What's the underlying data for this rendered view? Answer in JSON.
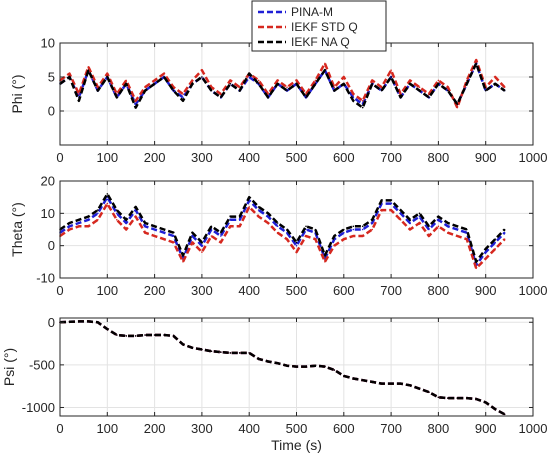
{
  "chart_data": [
    {
      "type": "line",
      "ylabel": "Phi (°)",
      "xlabel": "",
      "xlim": [
        0,
        1000
      ],
      "ylim": [
        -5,
        10
      ],
      "xticks": [
        0,
        100,
        200,
        300,
        400,
        500,
        600,
        700,
        800,
        900,
        1000
      ],
      "yticks": [
        0,
        5,
        10
      ],
      "grid": true,
      "x": [
        0,
        20,
        40,
        60,
        80,
        100,
        120,
        140,
        160,
        180,
        200,
        220,
        240,
        260,
        280,
        300,
        320,
        340,
        360,
        380,
        400,
        420,
        440,
        460,
        480,
        500,
        520,
        540,
        560,
        580,
        600,
        620,
        640,
        660,
        680,
        700,
        720,
        740,
        760,
        780,
        800,
        820,
        840,
        860,
        880,
        900,
        920,
        940
      ],
      "series": [
        {
          "name": "PINA-M",
          "values": [
            4,
            5,
            2,
            6,
            3,
            5,
            2,
            4,
            1,
            3,
            4,
            5,
            3,
            2,
            4,
            5,
            3,
            2,
            4,
            3,
            5,
            4,
            2,
            4,
            3,
            4,
            2,
            4,
            6,
            3,
            4,
            2,
            1,
            4,
            3,
            5,
            2,
            4,
            3,
            2,
            4,
            3,
            1,
            4,
            7,
            3,
            4,
            3
          ]
        },
        {
          "name": "IEKF STD Q",
          "values": [
            4.5,
            5.5,
            2.5,
            6.5,
            3.5,
            5.5,
            2.5,
            4.5,
            1.5,
            3.5,
            4.5,
            5.5,
            3.5,
            2.5,
            4.5,
            6,
            3.5,
            2.5,
            4.5,
            3.5,
            5.5,
            4.5,
            2.5,
            4.5,
            3.5,
            4.5,
            2.5,
            4.5,
            7,
            3.5,
            5,
            2.5,
            1.5,
            4.5,
            3.5,
            6,
            2.5,
            4.5,
            3.5,
            2.5,
            4.5,
            3.5,
            0.5,
            4.5,
            7.5,
            3.5,
            5,
            3.5
          ]
        },
        {
          "name": "IEKF NA Q",
          "values": [
            4,
            5,
            1.5,
            6,
            3,
            5,
            2,
            4,
            0.5,
            3,
            4,
            5,
            3,
            1.5,
            4,
            5,
            3,
            2,
            4,
            3,
            5.5,
            4,
            2,
            4,
            3,
            4,
            2,
            4,
            6,
            3,
            4,
            1.5,
            0.5,
            4,
            3,
            5,
            2,
            4,
            3,
            2,
            4,
            3,
            1,
            4,
            7,
            3,
            4,
            3
          ]
        }
      ]
    },
    {
      "type": "line",
      "ylabel": "Theta (°)",
      "xlabel": "",
      "xlim": [
        0,
        1000
      ],
      "ylim": [
        -10,
        20
      ],
      "xticks": [
        0,
        100,
        200,
        300,
        400,
        500,
        600,
        700,
        800,
        900,
        1000
      ],
      "yticks": [
        -10,
        0,
        10,
        20
      ],
      "grid": true,
      "x": [
        0,
        20,
        40,
        60,
        80,
        100,
        120,
        140,
        160,
        180,
        200,
        220,
        240,
        260,
        280,
        300,
        320,
        340,
        360,
        380,
        400,
        420,
        440,
        460,
        480,
        500,
        520,
        540,
        560,
        580,
        600,
        620,
        640,
        660,
        680,
        700,
        720,
        740,
        760,
        780,
        800,
        820,
        840,
        860,
        880,
        900,
        920,
        940
      ],
      "series": [
        {
          "name": "PINA-M",
          "values": [
            4,
            6,
            7,
            8,
            10,
            15,
            10,
            7,
            11,
            6,
            5,
            4,
            3,
            -4,
            3,
            0,
            5,
            3,
            8,
            8,
            14,
            11,
            9,
            6,
            4,
            0,
            5,
            4,
            -4,
            2,
            4,
            5,
            5,
            7,
            13,
            13,
            10,
            7,
            9,
            5,
            8,
            6,
            5,
            4,
            -6,
            -2,
            1,
            4
          ]
        },
        {
          "name": "IEKF STD Q",
          "values": [
            3,
            5,
            6,
            6,
            8,
            13,
            8,
            5,
            9,
            4,
            3,
            2,
            1,
            -5,
            1,
            -2,
            3,
            1,
            6,
            6,
            12,
            9,
            7,
            4,
            2,
            -2,
            3,
            2,
            -5,
            0,
            2,
            3,
            3,
            5,
            11,
            11,
            8,
            5,
            7,
            3,
            6,
            4,
            3,
            2,
            -7,
            -4,
            -1,
            2
          ]
        },
        {
          "name": "IEKF NA Q",
          "values": [
            5,
            7,
            8,
            9,
            11,
            16,
            11,
            8,
            12,
            7,
            6,
            5,
            4,
            -3,
            4,
            1,
            6,
            4,
            9,
            9,
            15,
            12,
            10,
            7,
            5,
            1,
            6,
            5,
            -3,
            3,
            5,
            6,
            6,
            8,
            14,
            14,
            11,
            8,
            10,
            6,
            9,
            7,
            6,
            5,
            -5,
            -1,
            2,
            5
          ]
        }
      ]
    },
    {
      "type": "line",
      "ylabel": "Psi (°)",
      "xlabel": "Time (s)",
      "xlim": [
        0,
        1000
      ],
      "ylim": [
        -1100,
        50
      ],
      "xticks": [
        0,
        100,
        200,
        300,
        400,
        500,
        600,
        700,
        800,
        900,
        1000
      ],
      "yticks": [
        -1000,
        -500,
        0
      ],
      "grid": true,
      "x": [
        0,
        20,
        40,
        60,
        80,
        100,
        120,
        140,
        160,
        180,
        200,
        220,
        240,
        260,
        280,
        300,
        320,
        340,
        360,
        380,
        400,
        420,
        440,
        460,
        480,
        500,
        520,
        540,
        560,
        580,
        600,
        620,
        640,
        660,
        680,
        700,
        720,
        740,
        760,
        780,
        800,
        820,
        840,
        860,
        880,
        900,
        920,
        940
      ],
      "series": [
        {
          "name": "PINA-M",
          "values": [
            0,
            5,
            10,
            10,
            0,
            -80,
            -150,
            -160,
            -160,
            -150,
            -150,
            -150,
            -160,
            -260,
            -300,
            -320,
            -340,
            -350,
            -360,
            -360,
            -360,
            -430,
            -460,
            -480,
            -510,
            -520,
            -520,
            -510,
            -520,
            -560,
            -630,
            -660,
            -680,
            -700,
            -720,
            -720,
            -720,
            -740,
            -780,
            -820,
            -880,
            -890,
            -890,
            -890,
            -900,
            -940,
            -1020,
            -1080
          ]
        },
        {
          "name": "IEKF STD Q",
          "values": [
            0,
            5,
            10,
            10,
            0,
            -80,
            -150,
            -160,
            -160,
            -150,
            -150,
            -150,
            -160,
            -260,
            -300,
            -320,
            -340,
            -350,
            -360,
            -360,
            -360,
            -430,
            -460,
            -480,
            -510,
            -520,
            -520,
            -510,
            -520,
            -560,
            -630,
            -660,
            -680,
            -700,
            -720,
            -720,
            -720,
            -740,
            -780,
            -820,
            -880,
            -890,
            -890,
            -890,
            -900,
            -940,
            -1020,
            -1080
          ]
        },
        {
          "name": "IEKF NA Q",
          "values": [
            0,
            5,
            10,
            10,
            0,
            -80,
            -150,
            -160,
            -160,
            -150,
            -150,
            -150,
            -160,
            -260,
            -300,
            -320,
            -340,
            -350,
            -360,
            -360,
            -360,
            -430,
            -460,
            -480,
            -510,
            -520,
            -520,
            -510,
            -520,
            -560,
            -630,
            -660,
            -680,
            -700,
            -720,
            -720,
            -720,
            -740,
            -780,
            -820,
            -880,
            -890,
            -890,
            -890,
            -900,
            -940,
            -1020,
            -1080
          ]
        }
      ]
    }
  ],
  "legend": {
    "location": "top-center",
    "entries": [
      {
        "label": "PINA-M",
        "color": "#1f1fd6",
        "dash": "dashed"
      },
      {
        "label": "IEKF STD Q",
        "color": "#d6281f",
        "dash": "dashed"
      },
      {
        "label": "IEKF NA Q",
        "color": "#000000",
        "dash": "dashed"
      }
    ]
  },
  "colors": {
    "PINA-M": "#1f1fd6",
    "IEKF STD Q": "#d6281f",
    "IEKF NA Q": "#000000"
  }
}
